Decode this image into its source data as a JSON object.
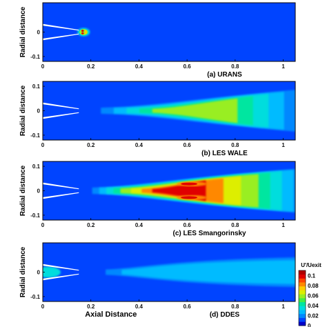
{
  "chart_data": [
    {
      "type": "heatmap",
      "caption": "(a) URANS",
      "xlabel": "",
      "ylabel": "Radial distance",
      "xlim": [
        0,
        1.05
      ],
      "ylim": [
        -0.12,
        0.12
      ],
      "xticks": [
        "0",
        "0.2",
        "0.4",
        "0.6",
        "0.8",
        "1"
      ],
      "yticks": [
        "0",
        "-0.1"
      ],
      "nozzle_exit_x": 0.15,
      "jet": {
        "core_peak": 0.1,
        "core_center": 0.17,
        "core_extent": [
          0.15,
          0.19
        ],
        "downstream_level": 0.0
      }
    },
    {
      "type": "heatmap",
      "caption": "(b) LES WALE",
      "xlabel": "",
      "ylabel": "Radial distance",
      "xlim": [
        0,
        1.05
      ],
      "ylim": [
        -0.12,
        0.12
      ],
      "xticks": [
        "0",
        "0.2",
        "0.4",
        "0.6",
        "0.8",
        "1"
      ],
      "yticks": [
        "0.1",
        "0",
        "-0.1"
      ],
      "nozzle_exit_x": 0.15,
      "jet": {
        "shear_layer_peak": 0.06,
        "peak_location_x": 0.7,
        "spread_at_end": 0.1
      }
    },
    {
      "type": "heatmap",
      "caption": "(c) LES Smangorinsky",
      "xlabel": "",
      "ylabel": "Radial distance",
      "xlim": [
        0,
        1.05
      ],
      "ylim": [
        -0.12,
        0.12
      ],
      "xticks": [
        "0",
        "0.2",
        "0.4",
        "0.6",
        "0.8",
        "1"
      ],
      "yticks": [
        "0.1",
        "0",
        "-0.1"
      ],
      "nozzle_exit_x": 0.15,
      "jet": {
        "shear_layer_peak": 0.1,
        "peak_location_x": 0.62,
        "spread_at_end": 0.1
      }
    },
    {
      "type": "heatmap",
      "caption": "(d) DDES",
      "xlabel": "Axial Distance",
      "ylabel": "Radial distance",
      "xlim": [
        0,
        1.05
      ],
      "ylim": [
        -0.12,
        0.12
      ],
      "xticks": [
        "0",
        "0.2",
        "0.4",
        "0.6",
        "0.8",
        "1"
      ],
      "yticks": [
        "0",
        "-0.1"
      ],
      "nozzle_exit_x": 0.15,
      "jet": {
        "shear_layer_peak": 0.03,
        "peak_location_x": 0.55,
        "spread_at_end": 0.08
      }
    }
  ],
  "colorbar": {
    "title": "U'/Uexit",
    "ticks": [
      "0.1",
      "0.08",
      "0.06",
      "0.04",
      "0.02",
      "0"
    ],
    "range": [
      0,
      0.11
    ],
    "colors": [
      "#0000c8",
      "#0044ff",
      "#0088ff",
      "#00bbff",
      "#00dddd",
      "#00e6a0",
      "#44ee44",
      "#99ee22",
      "#ddee00",
      "#ffcc00",
      "#ff8800",
      "#ff4400",
      "#e00000",
      "#b00000"
    ]
  }
}
